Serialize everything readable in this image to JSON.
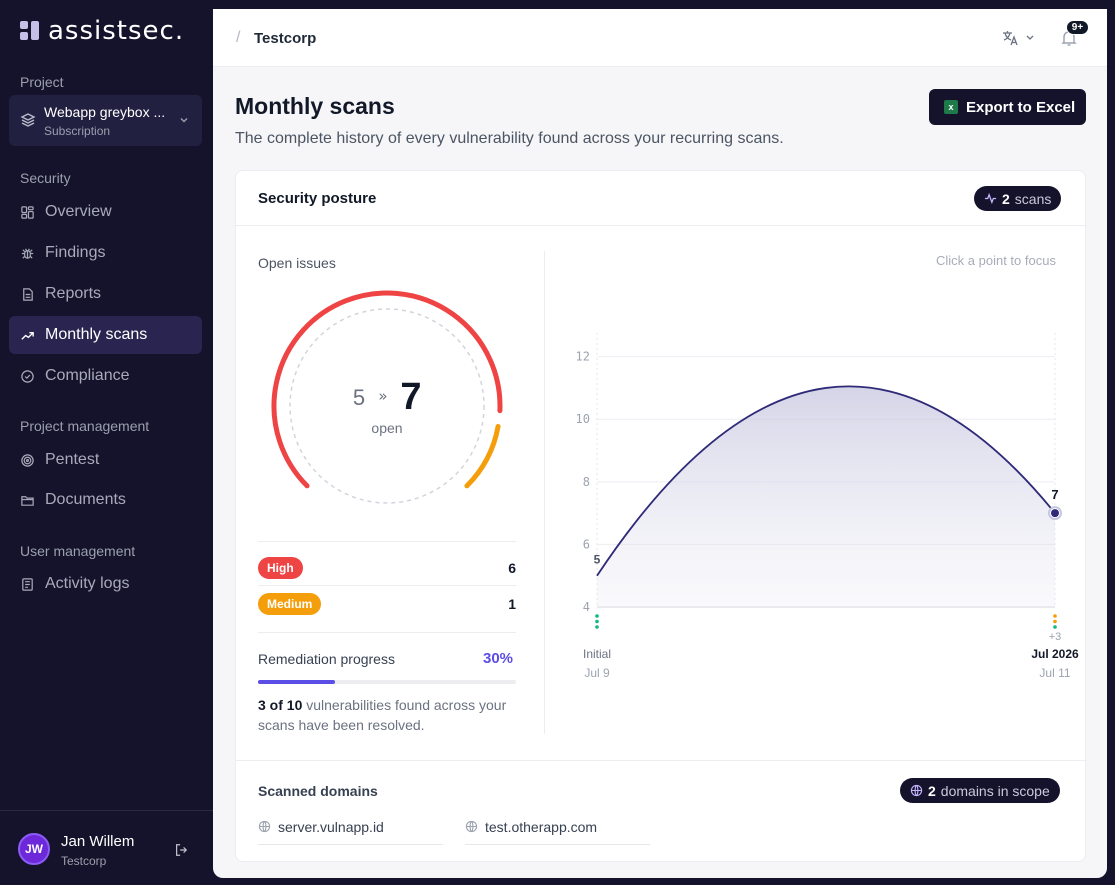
{
  "brand": {
    "name": "assistsec."
  },
  "sidebar": {
    "project_label": "Project",
    "project": {
      "name": "Webapp greybox ...",
      "type": "Subscription"
    },
    "sections": [
      {
        "label": "Security"
      },
      {
        "label": "Project management"
      },
      {
        "label": "User management"
      }
    ],
    "items": [
      {
        "label": "Overview",
        "icon": "grid-icon"
      },
      {
        "label": "Findings",
        "icon": "bug-icon"
      },
      {
        "label": "Reports",
        "icon": "document-icon"
      },
      {
        "label": "Monthly scans",
        "icon": "trend-icon",
        "active": true
      },
      {
        "label": "Compliance",
        "icon": "check-circle-icon"
      },
      {
        "label": "Pentest",
        "icon": "target-icon"
      },
      {
        "label": "Documents",
        "icon": "folder-icon"
      },
      {
        "label": "Activity logs",
        "icon": "log-icon"
      }
    ],
    "user": {
      "initials": "JW",
      "name": "Jan Willem",
      "org": "Testcorp"
    }
  },
  "header": {
    "breadcrumb": "Testcorp",
    "notifications_badge": "9+"
  },
  "page": {
    "title": "Monthly scans",
    "subtitle": "The complete history of every vulnerability found across your recurring scans.",
    "export_label": "Export to Excel"
  },
  "posture": {
    "title": "Security posture",
    "scans_count": "2",
    "scans_label": "scans",
    "open_issues_label": "Open issues",
    "from_value": "5",
    "to_value": "7",
    "open_label": "open",
    "high_fraction": 0.857,
    "severities": [
      {
        "label": "High",
        "count": "6",
        "color": "#ef4444"
      },
      {
        "label": "Medium",
        "count": "1",
        "color": "#f59e0b"
      }
    ],
    "remediation_label": "Remediation progress",
    "remediation_pct": "30%",
    "remediation_fraction": 0.3,
    "remediation_strong": "3 of 10",
    "remediation_text": " vulnerabilities found across your scans have been resolved.",
    "click_hint": "Click a point to focus"
  },
  "chart_data": {
    "type": "area",
    "points": [
      {
        "label": "Initial",
        "date": "Jul 9",
        "value": 5
      },
      {
        "label": "Jul 2026",
        "date": "Jul 11",
        "value": 7,
        "extra": "+3"
      }
    ],
    "yticks": [
      4,
      6,
      8,
      10,
      12
    ],
    "ylim": [
      4,
      12.5
    ],
    "peak_value": 11,
    "grid": true
  },
  "domains": {
    "label": "Scanned domains",
    "count": "2",
    "count_label": "domains in scope",
    "items": [
      "server.vulnapp.id",
      "test.otherapp.com"
    ]
  }
}
